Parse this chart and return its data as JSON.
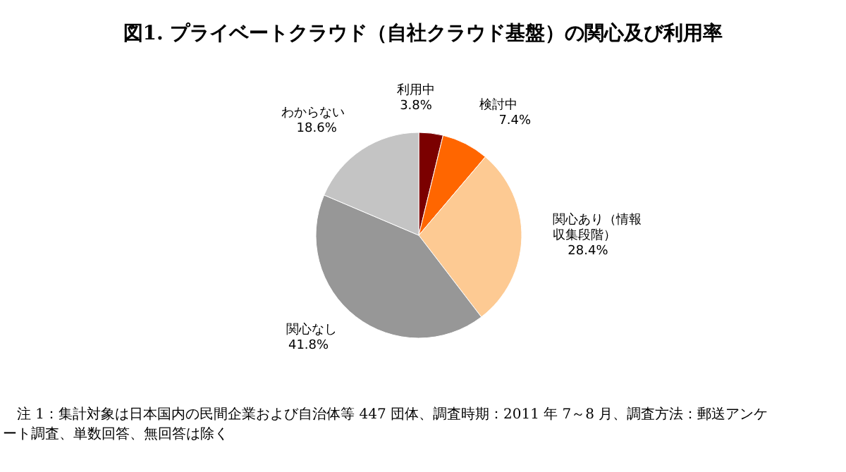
{
  "chart_data": {
    "type": "pie",
    "title": "図1. プライベートクラウド（自社クラウド基盤）の関心及び利用率",
    "categories": [
      "利用中",
      "検討中",
      "関心あり（情報収集段階）",
      "関心なし",
      "わからない"
    ],
    "values": [
      3.8,
      7.4,
      28.4,
      41.8,
      18.6
    ],
    "value_labels": [
      "3.8%",
      "7.4%",
      "28.4%",
      "41.8%",
      "18.6%"
    ],
    "colors": [
      "#7b0000",
      "#ff6600",
      "#fdca93",
      "#979797",
      "#c4c4c4"
    ],
    "annotations": [
      "注 1：集計対象は日本国内の民間企業および自治体等 447 団体、調査時期：2011 年 7～8 月、調査方法：郵送アンケート調査、単数回答、無回答は除く"
    ]
  }
}
